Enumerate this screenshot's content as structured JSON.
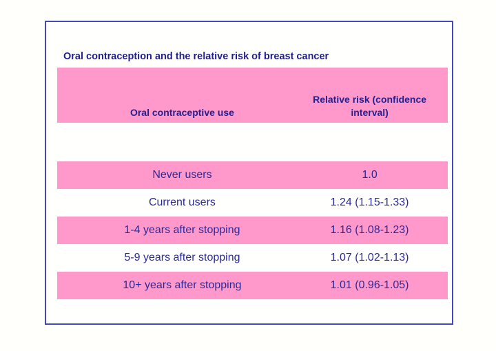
{
  "slide": {
    "title": "Oral contraception and the relative risk of breast cancer"
  },
  "table": {
    "header": {
      "use_label": "Oral contraceptive use",
      "risk_label": "Relative risk (confidence interval)"
    },
    "rows": [
      {
        "use": "Never users",
        "risk": "1.0"
      },
      {
        "use": "Current users",
        "risk": "1.24 (1.15-1.33)"
      },
      {
        "use": "1-4 years after stopping",
        "risk": "1.16 (1.08-1.23)"
      },
      {
        "use": "5-9 years after stopping",
        "risk": "1.07 (1.02-1.13)"
      },
      {
        "use": "10+ years after stopping",
        "risk": "1.01 (0.96-1.05)"
      }
    ]
  },
  "colors": {
    "row_highlight_pink": "#FF99CC",
    "title_text": "#1F1F8F",
    "body_text": "#2A2A97",
    "frame_border": "#4747BD",
    "page_background": "#FFFFFC"
  }
}
